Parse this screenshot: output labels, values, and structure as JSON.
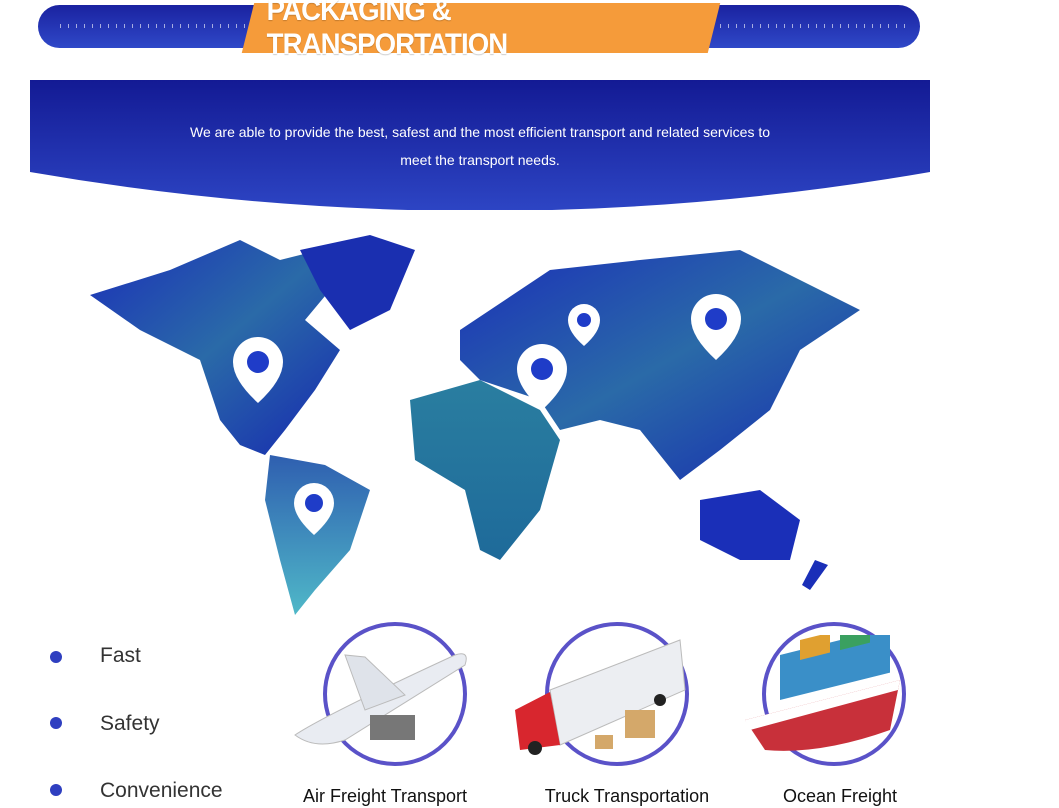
{
  "header": {
    "title": "PACKAGING & TRANSPORTATION"
  },
  "banner": {
    "text_line1": "We are able to provide the best, safest and the most efficient transport and related services to",
    "text_line2": "meet the transport needs."
  },
  "features": [
    {
      "label": "Fast"
    },
    {
      "label": "Safety"
    },
    {
      "label": "Convenience"
    }
  ],
  "services": [
    {
      "label": "Air Freight Transport",
      "icon": "airplane-icon"
    },
    {
      "label": "Truck Transportation",
      "icon": "truck-icon"
    },
    {
      "label": "Ocean Freight",
      "icon": "cargo-ship-icon"
    }
  ],
  "colors": {
    "primary_blue": "#1a22a0",
    "accent_orange": "#f59b3a",
    "ring": "#5a52c8"
  }
}
